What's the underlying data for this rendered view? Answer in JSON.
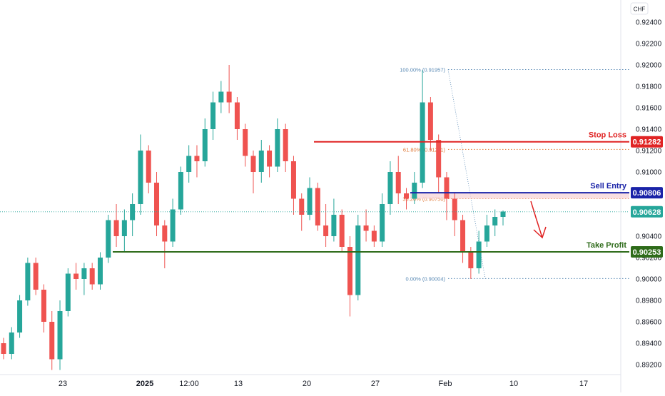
{
  "chart_data": {
    "type": "candlestick",
    "currency": "CHF",
    "ylim": [
      0.891,
      0.9252
    ],
    "y_ticks": [
      "0.92400",
      "0.92200",
      "0.92000",
      "0.91800",
      "0.91600",
      "0.91400",
      "0.91200",
      "0.91000",
      "0.90800",
      "0.90600",
      "0.90400",
      "0.90200",
      "0.90000",
      "0.89800",
      "0.89600",
      "0.89400",
      "0.89200"
    ],
    "x_ticks": [
      "23",
      "2025",
      "12:00",
      "13",
      "20",
      "27",
      "Feb",
      "10",
      "17"
    ],
    "current_price": "0.90628",
    "levels": {
      "stop_loss": {
        "label": "Stop Loss",
        "value": "0.91282",
        "color": "#e02424"
      },
      "sell_entry": {
        "label": "Sell Entry",
        "value": "0.90806",
        "color": "#1a23a8"
      },
      "take_profit": {
        "label": "Take Profit",
        "value": "0.90253",
        "color": "#2e6b1a"
      }
    },
    "fibonacci": [
      {
        "label": "100.00% (0.91957)",
        "value": 0.91957,
        "color": "#5a8ab5"
      },
      {
        "label": "61.80% (0.91211)",
        "value": 0.91211,
        "color": "#e07b3a"
      },
      {
        "label": "38.20% (0.90750)",
        "value": 0.9075,
        "color": "#e07b3a"
      },
      {
        "label": "0.00% (0.90004)",
        "value": 0.90004,
        "color": "#5a8ab5"
      }
    ],
    "colors": {
      "up": "#26a69a",
      "down": "#ef5350",
      "arrow": "#e02424",
      "current": "#26a69a"
    },
    "candles_ohlc_sampled": [
      [
        0.894,
        0.8945,
        0.8925,
        0.893
      ],
      [
        0.893,
        0.8955,
        0.8925,
        0.895
      ],
      [
        0.895,
        0.8985,
        0.8945,
        0.898
      ],
      [
        0.898,
        0.902,
        0.8975,
        0.9015
      ],
      [
        0.9015,
        0.902,
        0.8985,
        0.899
      ],
      [
        0.899,
        0.8995,
        0.895,
        0.896
      ],
      [
        0.896,
        0.897,
        0.8915,
        0.8925
      ],
      [
        0.8925,
        0.898,
        0.8915,
        0.897
      ],
      [
        0.897,
        0.901,
        0.8965,
        0.9005
      ],
      [
        0.9005,
        0.9015,
        0.899,
        0.9
      ],
      [
        0.9,
        0.9015,
        0.8985,
        0.901
      ],
      [
        0.901,
        0.9015,
        0.899,
        0.8995
      ],
      [
        0.8995,
        0.9025,
        0.899,
        0.902
      ],
      [
        0.902,
        0.906,
        0.9015,
        0.9055
      ],
      [
        0.9055,
        0.907,
        0.903,
        0.904
      ],
      [
        0.904,
        0.9065,
        0.9025,
        0.9055
      ],
      [
        0.9055,
        0.908,
        0.904,
        0.907
      ],
      [
        0.907,
        0.9135,
        0.906,
        0.912
      ],
      [
        0.912,
        0.9125,
        0.908,
        0.909
      ],
      [
        0.909,
        0.91,
        0.904,
        0.905
      ],
      [
        0.905,
        0.9055,
        0.901,
        0.9035
      ],
      [
        0.9035,
        0.9075,
        0.903,
        0.9065
      ],
      [
        0.9065,
        0.9105,
        0.906,
        0.91
      ],
      [
        0.91,
        0.9125,
        0.909,
        0.9115
      ],
      [
        0.9115,
        0.9125,
        0.9095,
        0.911
      ],
      [
        0.911,
        0.915,
        0.9105,
        0.914
      ],
      [
        0.914,
        0.9175,
        0.913,
        0.9165
      ],
      [
        0.9165,
        0.9185,
        0.9155,
        0.9175
      ],
      [
        0.9175,
        0.92,
        0.9155,
        0.9165
      ],
      [
        0.9165,
        0.917,
        0.913,
        0.914
      ],
      [
        0.914,
        0.9145,
        0.9105,
        0.9115
      ],
      [
        0.9115,
        0.912,
        0.908,
        0.91
      ],
      [
        0.91,
        0.913,
        0.909,
        0.912
      ],
      [
        0.912,
        0.9125,
        0.9095,
        0.9105
      ],
      [
        0.9105,
        0.915,
        0.91,
        0.914
      ],
      [
        0.914,
        0.9145,
        0.91,
        0.911
      ],
      [
        0.911,
        0.9115,
        0.906,
        0.9075
      ],
      [
        0.9075,
        0.908,
        0.9045,
        0.906
      ],
      [
        0.906,
        0.9095,
        0.9055,
        0.9085
      ],
      [
        0.9085,
        0.909,
        0.9045,
        0.905
      ],
      [
        0.905,
        0.907,
        0.903,
        0.904
      ],
      [
        0.904,
        0.9075,
        0.9035,
        0.906
      ],
      [
        0.906,
        0.9065,
        0.9025,
        0.903
      ],
      [
        0.903,
        0.904,
        0.8965,
        0.8985
      ],
      [
        0.8985,
        0.906,
        0.898,
        0.905
      ],
      [
        0.905,
        0.9065,
        0.9035,
        0.9045
      ],
      [
        0.9045,
        0.905,
        0.903,
        0.9035
      ],
      [
        0.9035,
        0.908,
        0.903,
        0.907
      ],
      [
        0.907,
        0.911,
        0.906,
        0.91
      ],
      [
        0.91,
        0.9115,
        0.907,
        0.908
      ],
      [
        0.908,
        0.9085,
        0.9065,
        0.9075
      ],
      [
        0.9075,
        0.91,
        0.907,
        0.909
      ],
      [
        0.909,
        0.9195,
        0.9085,
        0.9165
      ],
      [
        0.9165,
        0.917,
        0.912,
        0.913
      ],
      [
        0.913,
        0.9135,
        0.908,
        0.9095
      ],
      [
        0.9095,
        0.91,
        0.9055,
        0.9075
      ],
      [
        0.9075,
        0.908,
        0.904,
        0.9055
      ],
      [
        0.9055,
        0.906,
        0.9015,
        0.9025
      ],
      [
        0.9025,
        0.903,
        0.9,
        0.901
      ],
      [
        0.901,
        0.9045,
        0.9005,
        0.9035
      ],
      [
        0.9035,
        0.906,
        0.903,
        0.905
      ],
      [
        0.905,
        0.9065,
        0.904,
        0.9058
      ],
      [
        0.9058,
        0.9064,
        0.905,
        0.9063
      ]
    ]
  }
}
